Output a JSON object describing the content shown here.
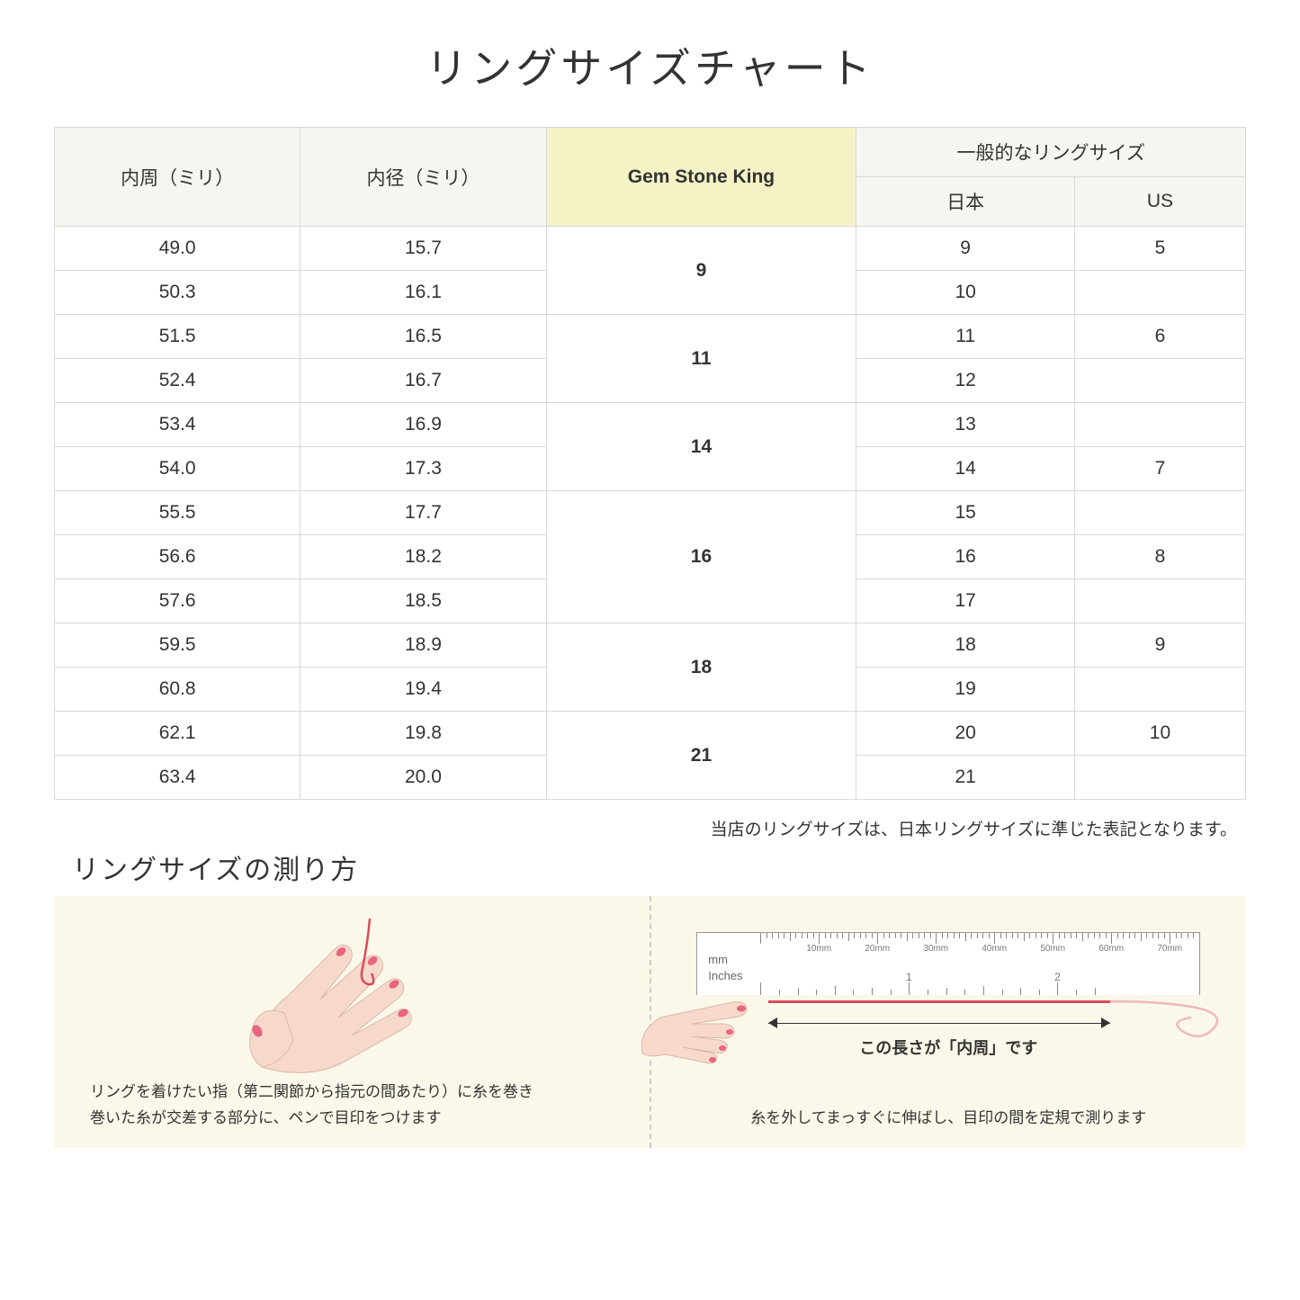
{
  "title": "リングサイズチャート",
  "headers": {
    "circumference": "内周（ミリ）",
    "diameter": "内径（ミリ）",
    "gsk": "Gem Stone King",
    "general": "一般的なリングサイズ",
    "japan": "日本",
    "us": "US"
  },
  "rows": [
    {
      "circ": "49.0",
      "dia": "15.7",
      "gsk": "9",
      "gsk_span": 2,
      "jp": "9",
      "us": "5"
    },
    {
      "circ": "50.3",
      "dia": "16.1",
      "jp": "10",
      "us": ""
    },
    {
      "circ": "51.5",
      "dia": "16.5",
      "gsk": "11",
      "gsk_span": 2,
      "jp": "11",
      "us": "6"
    },
    {
      "circ": "52.4",
      "dia": "16.7",
      "jp": "12",
      "us": ""
    },
    {
      "circ": "53.4",
      "dia": "16.9",
      "gsk": "14",
      "gsk_span": 2,
      "jp": "13",
      "us": ""
    },
    {
      "circ": "54.0",
      "dia": "17.3",
      "jp": "14",
      "us": "7"
    },
    {
      "circ": "55.5",
      "dia": "17.7",
      "gsk": "16",
      "gsk_span": 3,
      "jp": "15",
      "us": ""
    },
    {
      "circ": "56.6",
      "dia": "18.2",
      "jp": "16",
      "us": "8"
    },
    {
      "circ": "57.6",
      "dia": "18.5",
      "jp": "17",
      "us": ""
    },
    {
      "circ": "59.5",
      "dia": "18.9",
      "gsk": "18",
      "gsk_span": 2,
      "jp": "18",
      "us": "9"
    },
    {
      "circ": "60.8",
      "dia": "19.4",
      "jp": "19",
      "us": ""
    },
    {
      "circ": "62.1",
      "dia": "19.8",
      "gsk": "21",
      "gsk_span": 2,
      "jp": "20",
      "us": "10"
    },
    {
      "circ": "63.4",
      "dia": "20.0",
      "jp": "21",
      "us": ""
    }
  ],
  "table_note": "当店のリングサイズは、日本リングサイズに準じた表記となります。",
  "measure_title": "リングサイズの測り方",
  "panel1_caption": "リングを着けたい指（第二関節から指元の間あたり）に糸を巻き\n巻いた糸が交差する部分に、ペンで目印をつけます",
  "panel2_caption": "糸を外してまっすぐに伸ばし、目印の間を定規で測ります",
  "ruler": {
    "mm_unit": "mm",
    "in_unit": "Inches",
    "mm_labels": [
      "10mm",
      "20mm",
      "30mm",
      "40mm",
      "50mm",
      "60mm",
      "70mm"
    ],
    "in_labels": [
      "1",
      "2"
    ]
  },
  "dimension_label": "この長さが「内周」です",
  "colors": {
    "header_bg": "#f6f6f0",
    "highlight_bg": "#f5f3c6",
    "border": "#d9d9d9",
    "panel_bg": "#fbf8e9",
    "thread": "#d94b5b",
    "skin": "#f7d9cc",
    "nail": "#e8657d"
  }
}
